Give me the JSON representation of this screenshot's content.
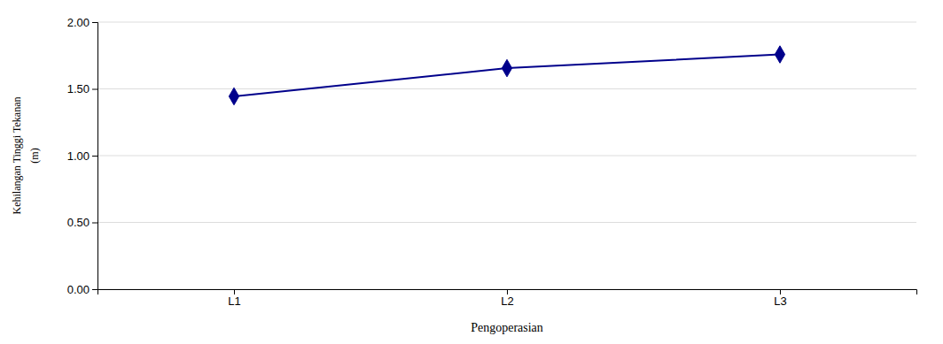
{
  "chart_data": {
    "type": "line",
    "categories": [
      "L1",
      "L2",
      "L3"
    ],
    "values": [
      1.444,
      1.655,
      1.758
    ],
    "color": "#00008B",
    "marker": "diamond",
    "xlabel": "Pengoperasian",
    "ylabel": [
      "Kehilangan Tinggi Tekanan",
      "(m)"
    ],
    "ylim": [
      0.0,
      2.0
    ],
    "yticks": [
      {
        "value": 0.0,
        "label": "0.00"
      },
      {
        "value": 0.5,
        "label": "0.50"
      },
      {
        "value": 1.0,
        "label": "1.00"
      },
      {
        "value": 1.5,
        "label": "1.50"
      },
      {
        "value": 2.0,
        "label": "2.00"
      }
    ],
    "grid": true
  }
}
